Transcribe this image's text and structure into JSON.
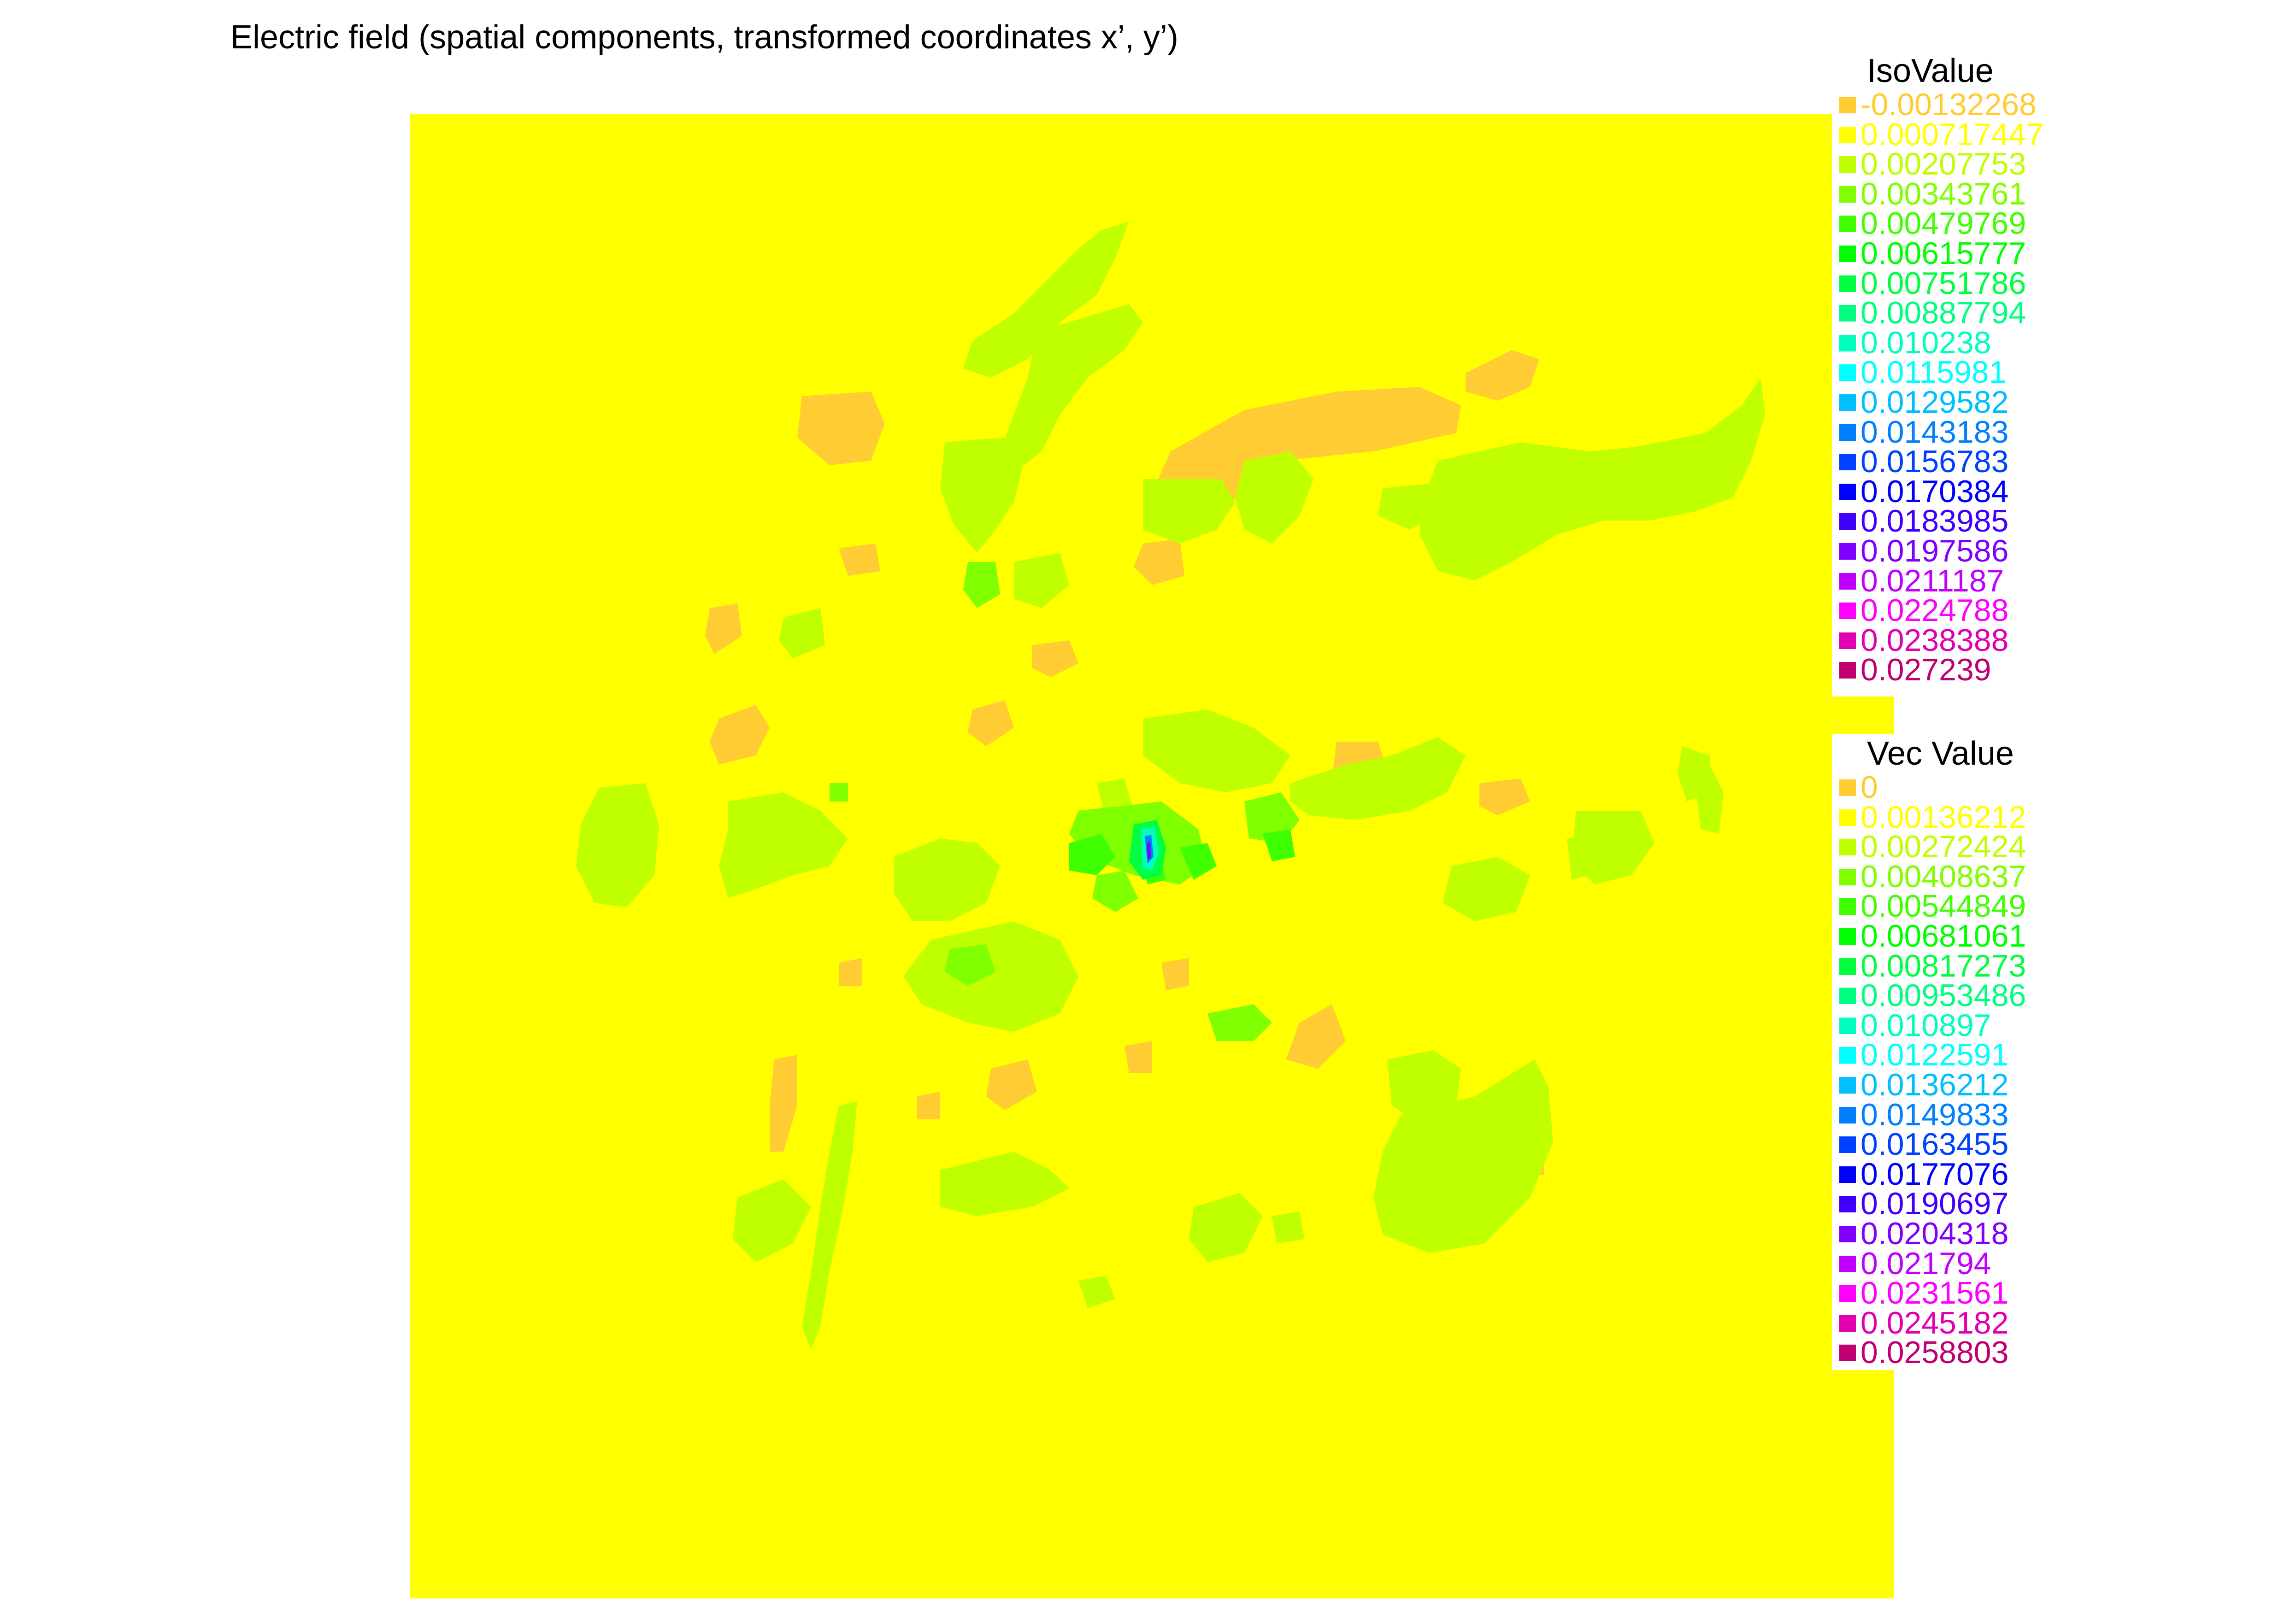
{
  "title": "Electric field (spatial components, transformed coordinates x’, y’)",
  "chart_data": {
    "type": "heatmap",
    "title": "Electric field (spatial components, transformed coordinates x’, y’)",
    "xlabel": "",
    "ylabel": "",
    "background_value_color": "#ffff00",
    "legends": {
      "iso": {
        "title": "IsoValue",
        "entries": [
          {
            "label": "-0.00132268",
            "color": "#ffcc33"
          },
          {
            "label": "0.000717447",
            "color": "#ffff00"
          },
          {
            "label": "0.00207753",
            "color": "#bfff00"
          },
          {
            "label": "0.00343761",
            "color": "#80ff00"
          },
          {
            "label": "0.00479769",
            "color": "#40ff00"
          },
          {
            "label": "0.00615777",
            "color": "#00ff00"
          },
          {
            "label": "0.00751786",
            "color": "#00ff40"
          },
          {
            "label": "0.00887794",
            "color": "#00ff80"
          },
          {
            "label": "0.010238",
            "color": "#00ffbf"
          },
          {
            "label": "0.0115981",
            "color": "#00ffff"
          },
          {
            "label": "0.0129582",
            "color": "#00bfff"
          },
          {
            "label": "0.0143183",
            "color": "#0080ff"
          },
          {
            "label": "0.0156783",
            "color": "#0040ff"
          },
          {
            "label": "0.0170384",
            "color": "#0000ff"
          },
          {
            "label": "0.0183985",
            "color": "#4000ff"
          },
          {
            "label": "0.0197586",
            "color": "#8000ff"
          },
          {
            "label": "0.0211187",
            "color": "#bf00ff"
          },
          {
            "label": "0.0224788",
            "color": "#ff00ff"
          },
          {
            "label": "0.0238388",
            "color": "#e000b0"
          },
          {
            "label": "0.027239",
            "color": "#c00070"
          }
        ]
      },
      "vec": {
        "title": "Vec Value",
        "entries": [
          {
            "label": "0",
            "color": "#ffcc33"
          },
          {
            "label": "0.00136212",
            "color": "#ffff00"
          },
          {
            "label": "0.00272424",
            "color": "#bfff00"
          },
          {
            "label": "0.00408637",
            "color": "#80ff00"
          },
          {
            "label": "0.00544849",
            "color": "#40ff00"
          },
          {
            "label": "0.00681061",
            "color": "#00ff00"
          },
          {
            "label": "0.00817273",
            "color": "#00ff40"
          },
          {
            "label": "0.00953486",
            "color": "#00ff80"
          },
          {
            "label": "0.010897",
            "color": "#00ffbf"
          },
          {
            "label": "0.0122591",
            "color": "#00ffff"
          },
          {
            "label": "0.0136212",
            "color": "#00bfff"
          },
          {
            "label": "0.0149833",
            "color": "#0080ff"
          },
          {
            "label": "0.0163455",
            "color": "#0040ff"
          },
          {
            "label": "0.0177076",
            "color": "#0000ff"
          },
          {
            "label": "0.0190697",
            "color": "#4000ff"
          },
          {
            "label": "0.0204318",
            "color": "#8000ff"
          },
          {
            "label": "0.021794",
            "color": "#bf00ff"
          },
          {
            "label": "0.0231561",
            "color": "#ff00ff"
          },
          {
            "label": "0.0245182",
            "color": "#e000b0"
          },
          {
            "label": "0.0258803",
            "color": "#c00070"
          }
        ]
      }
    }
  }
}
